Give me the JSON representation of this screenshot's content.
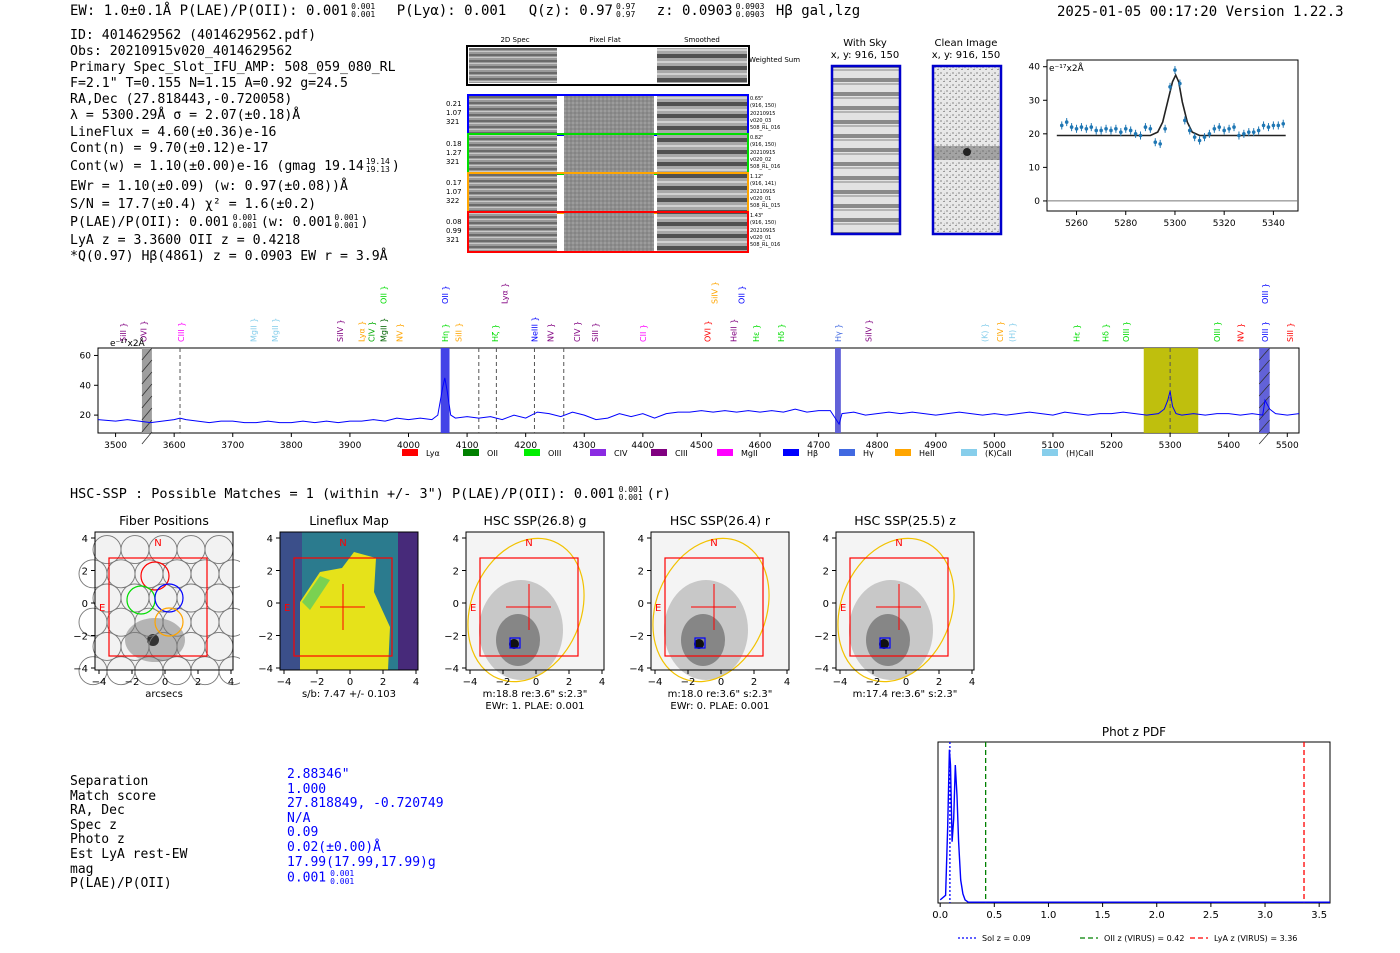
{
  "header": {
    "ew": "EW: 1.0±0.1Å  P(LAE)/P(OII): 0.001",
    "plae_sup": "0.001",
    "plae_sub": "0.001",
    "plya": "P(Lyα): 0.001",
    "qz": "Q(z): 0.97",
    "qz_sup": "0.97",
    "qz_sub": "0.97",
    "z": "z: 0.0903",
    "z_sup": "0.0903",
    "z_sub": "0.0903",
    "hb": "Hβ  gal,lzg",
    "timestamp": "2025-01-05 00:17:20  Version 1.22.3"
  },
  "detection": {
    "lines": [
      "ID: 4014629562 (4014629562.pdf)",
      "Obs: 20210915v020_4014629562",
      "Primary Spec_Slot_IFU_AMP: 508_059_080_RL",
      "F=2.1\"  T=0.155  N=1.15  A=0.92  g=24.5",
      "RA,Dec (27.818443,-0.720058)",
      "λ = 5300.29Å  σ = 2.07(±0.18)Å",
      "LineFlux = 4.60(±0.36)e-16",
      "Cont(n) = 9.70(±0.12)e-17"
    ],
    "contw": "Cont(w) = 1.10(±0.00)e-16 (gmag 19.14",
    "contw_sup": "19.14",
    "contw_sub": "19.13",
    "contw_end": ")",
    "ewr": "EWr = 1.10(±0.09) (w: 0.97(±0.08))Å",
    "sn": "S/N = 17.7(±0.4)  χ² = 1.6(±0.2)",
    "plae_a": "P(LAE)/P(OII): 0.001",
    "plae_a_sup": "0.001",
    "plae_a_sub": "0.001",
    "plae_b": "(w: 0.001",
    "plae_b_sup": "0.001",
    "plae_b_sub": "0.001",
    "plae_b_end": ")",
    "lya_oii": "LyA z = 3.3600  OII z = 0.4218",
    "q_hb": "*Q(0.97) Hβ(4861) z = 0.0903  EW r = 3.9Å"
  },
  "cutouts": {
    "col_headers": [
      "2D Spec",
      "Pixel Flat",
      "Smoothed"
    ],
    "weighted_sum": "Weighted Sum",
    "rows": [
      {
        "left": [
          "0.21",
          "1.07",
          "321"
        ],
        "right": [
          "0.65\"",
          "(916, 150)",
          "20210915",
          "v020_03",
          "508_RL_016"
        ],
        "color": "#0000ff"
      },
      {
        "left": [
          "0.18",
          "1.27",
          "321"
        ],
        "right": [
          "0.82\"",
          "(916, 150)",
          "20210915",
          "v020_02",
          "508_RL_016"
        ],
        "color": "#00dd00"
      },
      {
        "left": [
          "0.17",
          "1.07",
          "322"
        ],
        "right": [
          "1.12\"",
          "(916, 141)",
          "20210915",
          "v020_01",
          "508_RL_015"
        ],
        "color": "#ffa500"
      },
      {
        "left": [
          "0.08",
          "0.99",
          "321"
        ],
        "right": [
          "1.43\"",
          "(916, 150)",
          "20210915",
          "v020_01",
          "508_RL_016"
        ],
        "color": "#ff0000"
      }
    ],
    "with_sky": "With Sky",
    "with_sky_xy": "x, y: 916, 150",
    "clean": "Clean Image",
    "clean_xy": "x, y: 916, 150"
  },
  "zoom_chart": {
    "type": "line",
    "unit_label": "e⁻¹⁷x2Å",
    "xlim": [
      5248,
      5350
    ],
    "ylim": [
      -3,
      42
    ],
    "xticks": [
      5260,
      5280,
      5300,
      5320,
      5340
    ],
    "yticks": [
      0,
      10,
      20,
      30,
      40
    ],
    "fit_x": [
      5252,
      5290,
      5293,
      5295,
      5297,
      5299,
      5300.3,
      5301.5,
      5303,
      5305,
      5307,
      5310,
      5345
    ],
    "fit_y": [
      19.5,
      19.5,
      20.5,
      23.5,
      29.5,
      35.5,
      37.5,
      35.5,
      29.5,
      23.5,
      20.5,
      19.5,
      19.5
    ],
    "points": [
      [
        5254,
        22.5
      ],
      [
        5256,
        23.5
      ],
      [
        5258,
        22
      ],
      [
        5260,
        21.5
      ],
      [
        5262,
        22
      ],
      [
        5264,
        21.5
      ],
      [
        5266,
        22
      ],
      [
        5268,
        21
      ],
      [
        5270,
        21
      ],
      [
        5272,
        21.5
      ],
      [
        5274,
        21
      ],
      [
        5276,
        21.5
      ],
      [
        5278,
        20.5
      ],
      [
        5280,
        21.5
      ],
      [
        5282,
        21
      ],
      [
        5284,
        20
      ],
      [
        5286,
        19.5
      ],
      [
        5288,
        22
      ],
      [
        5290,
        21.5
      ],
      [
        5292,
        17.5
      ],
      [
        5294,
        17
      ],
      [
        5296,
        21.5
      ],
      [
        5298,
        34
      ],
      [
        5300,
        39
      ],
      [
        5302,
        35
      ],
      [
        5304,
        24
      ],
      [
        5306,
        21
      ],
      [
        5308,
        19
      ],
      [
        5310,
        18
      ],
      [
        5312,
        19
      ],
      [
        5314,
        20
      ],
      [
        5316,
        21.5
      ],
      [
        5318,
        22
      ],
      [
        5320,
        21
      ],
      [
        5322,
        21.5
      ],
      [
        5324,
        22
      ],
      [
        5326,
        19.5
      ],
      [
        5328,
        20
      ],
      [
        5330,
        20.5
      ],
      [
        5332,
        20.5
      ],
      [
        5334,
        21
      ],
      [
        5336,
        22.5
      ],
      [
        5338,
        22
      ],
      [
        5340,
        22.5
      ],
      [
        5342,
        22.5
      ],
      [
        5344,
        23
      ]
    ]
  },
  "chart_data": [
    {
      "type": "line",
      "title": "",
      "unit_label": "e⁻¹⁷x2Å",
      "xlim": [
        3470,
        5520
      ],
      "ylim": [
        8,
        65
      ],
      "xticks": [
        3500,
        3600,
        3700,
        3800,
        3900,
        4000,
        4100,
        4200,
        4300,
        4400,
        4500,
        4600,
        4700,
        4800,
        4900,
        5000,
        5100,
        5200,
        5300,
        5400,
        5500
      ],
      "yticks": [
        20,
        40,
        60
      ],
      "x": [
        3470,
        3500,
        3520,
        3540,
        3560,
        3580,
        3600,
        3610,
        3620,
        3640,
        3660,
        3680,
        3700,
        3720,
        3740,
        3760,
        3780,
        3800,
        3820,
        3840,
        3860,
        3880,
        3900,
        3920,
        3940,
        3960,
        3980,
        4000,
        4020,
        4040,
        4050,
        4058,
        4062,
        4066,
        4072,
        4080,
        4100,
        4120,
        4140,
        4160,
        4180,
        4200,
        4220,
        4240,
        4260,
        4280,
        4300,
        4320,
        4340,
        4360,
        4380,
        4400,
        4420,
        4440,
        4460,
        4480,
        4500,
        4520,
        4540,
        4560,
        4580,
        4600,
        4620,
        4640,
        4660,
        4680,
        4700,
        4720,
        4735,
        4740,
        4760,
        4780,
        4800,
        4820,
        4840,
        4860,
        4880,
        4900,
        4920,
        4940,
        4960,
        4980,
        5000,
        5020,
        5040,
        5060,
        5080,
        5100,
        5120,
        5140,
        5160,
        5180,
        5200,
        5220,
        5240,
        5260,
        5280,
        5290,
        5296,
        5300,
        5304,
        5310,
        5320,
        5340,
        5360,
        5380,
        5400,
        5420,
        5440,
        5458,
        5462,
        5470,
        5480,
        5500,
        5520
      ],
      "y": [
        17,
        16,
        17,
        16,
        15,
        16,
        17,
        18,
        17,
        16,
        15,
        16,
        16,
        15,
        15,
        16,
        15,
        15,
        16,
        15,
        16,
        15,
        16,
        16,
        17,
        16,
        18,
        17,
        18,
        17,
        20,
        38,
        45,
        36,
        20,
        18,
        19,
        18,
        19,
        17,
        20,
        18,
        22,
        21,
        19,
        22,
        20,
        17,
        18,
        21,
        19,
        21,
        18,
        21,
        22,
        22,
        23,
        22,
        23,
        22,
        23,
        22,
        23,
        22,
        24,
        22,
        23,
        23,
        14,
        21,
        22,
        20,
        21,
        22,
        21,
        22,
        21,
        20,
        21,
        22,
        21,
        20,
        21,
        20,
        21,
        22,
        21,
        20,
        22,
        21,
        20,
        21,
        21,
        22,
        21,
        20,
        21,
        24,
        30,
        36,
        26,
        21,
        20,
        21,
        20,
        21,
        21,
        20,
        21,
        20,
        30,
        24,
        21,
        20,
        21
      ],
      "bands": [
        {
          "x0": 3545,
          "x1": 3562,
          "color": "#999999",
          "hatch": true
        },
        {
          "x0": 4055,
          "x1": 4070,
          "color": "#3a3ae6",
          "hatch": false
        },
        {
          "x0": 4728,
          "x1": 4738,
          "color": "#5a5ad6",
          "hatch": false
        },
        {
          "x0": 5255,
          "x1": 5348,
          "color": "#bcbc00",
          "hatch": false
        },
        {
          "x0": 5452,
          "x1": 5470,
          "color": "#5a5ad6",
          "hatch": true
        }
      ],
      "dashed_x": [
        3610,
        4120,
        4150,
        4215,
        4265,
        5300
      ],
      "line_labels": [
        {
          "text": "SiII",
          "x": 3513,
          "color": "#800080",
          "row": "low"
        },
        {
          "text": "OVI",
          "x": 3548,
          "color": "#800080",
          "row": "low"
        },
        {
          "text": "CIII",
          "x": 3612,
          "color": "#ff00ff",
          "row": "low"
        },
        {
          "text": "MgII",
          "x": 3735,
          "color": "#87ceeb",
          "row": "low"
        },
        {
          "text": "MgII",
          "x": 3772,
          "color": "#87ceeb",
          "row": "low"
        },
        {
          "text": "SiIV",
          "x": 3883,
          "color": "#800080",
          "row": "low"
        },
        {
          "text": "Lyα",
          "x": 3920,
          "color": "#ffa500",
          "row": "low"
        },
        {
          "text": "CIV",
          "x": 3937,
          "color": "#00aa00",
          "row": "low"
        },
        {
          "text": "MgII",
          "x": 3957,
          "color": "#006400",
          "row": "low"
        },
        {
          "text": "NV",
          "x": 3985,
          "color": "#ffa500",
          "row": "low"
        },
        {
          "text": "Hη",
          "x": 4062,
          "color": "#00dd00",
          "row": "low"
        },
        {
          "text": "SiII",
          "x": 4085,
          "color": "#ffa500",
          "row": "low"
        },
        {
          "text": "Hζ",
          "x": 4148,
          "color": "#00dd00",
          "row": "low"
        },
        {
          "text": "NeIII",
          "x": 4215,
          "color": "#0000ff",
          "row": "low"
        },
        {
          "text": "NV",
          "x": 4242,
          "color": "#800080",
          "row": "low"
        },
        {
          "text": "CIV",
          "x": 4288,
          "color": "#800080",
          "row": "low"
        },
        {
          "text": "SiII",
          "x": 4318,
          "color": "#800080",
          "row": "low"
        },
        {
          "text": "CII",
          "x": 4400,
          "color": "#ff00ff",
          "row": "low"
        },
        {
          "text": "OVI",
          "x": 4510,
          "color": "#ff0000",
          "row": "low"
        },
        {
          "text": "HeII",
          "x": 4555,
          "color": "#800080",
          "row": "low"
        },
        {
          "text": "Hε",
          "x": 4593,
          "color": "#00dd00",
          "row": "low"
        },
        {
          "text": "Hδ",
          "x": 4636,
          "color": "#00dd00",
          "row": "low"
        },
        {
          "text": "Hγ",
          "x": 4733,
          "color": "#4169e1",
          "row": "low"
        },
        {
          "text": "SiIV",
          "x": 4785,
          "color": "#800080",
          "row": "low"
        },
        {
          "text": "(K)",
          "x": 4983,
          "color": "#87ceeb",
          "row": "low"
        },
        {
          "text": "CIV",
          "x": 5010,
          "color": "#ffa500",
          "row": "low"
        },
        {
          "text": "(H)",
          "x": 5030,
          "color": "#87ceeb",
          "row": "low"
        },
        {
          "text": "Hε",
          "x": 5140,
          "color": "#00dd00",
          "row": "low"
        },
        {
          "text": "Hδ",
          "x": 5190,
          "color": "#00dd00",
          "row": "low"
        },
        {
          "text": "OIII",
          "x": 5225,
          "color": "#00dd00",
          "row": "low"
        },
        {
          "text": "OIII",
          "x": 5380,
          "color": "#00dd00",
          "row": "low"
        },
        {
          "text": "NV",
          "x": 5420,
          "color": "#ff0000",
          "row": "low"
        },
        {
          "text": "OIII",
          "x": 5462,
          "color": "#0000ff",
          "row": "low"
        },
        {
          "text": "SiII",
          "x": 5505,
          "color": "#ff0000",
          "row": "low"
        },
        {
          "text": "OII",
          "x": 3957,
          "color": "#00dd00",
          "row": "high"
        },
        {
          "text": "OII",
          "x": 4062,
          "color": "#0000ff",
          "row": "high"
        },
        {
          "text": "Lyα",
          "x": 4164,
          "color": "#800080",
          "row": "high"
        },
        {
          "text": "SiIV",
          "x": 4522,
          "color": "#ffa500",
          "row": "high"
        },
        {
          "text": "OII",
          "x": 4568,
          "color": "#0000ff",
          "row": "high"
        },
        {
          "text": "OIII",
          "x": 5462,
          "color": "#0000ff",
          "row": "high"
        }
      ],
      "legend": [
        {
          "label": "Lyα",
          "color": "#ff0000"
        },
        {
          "label": "OII",
          "color": "#008000"
        },
        {
          "label": "OIII",
          "color": "#00ee00"
        },
        {
          "label": "CIV",
          "color": "#8a2be2"
        },
        {
          "label": "CIII",
          "color": "#800080"
        },
        {
          "label": "MgII",
          "color": "#ff00ff"
        },
        {
          "label": "Hβ",
          "color": "#0000ff"
        },
        {
          "label": "Hγ",
          "color": "#4169e1"
        },
        {
          "label": "HeII",
          "color": "#ffa500"
        },
        {
          "label": "(K)CaII",
          "color": "#87ceeb"
        },
        {
          "label": "(H)CaII",
          "color": "#87ceeb"
        }
      ]
    },
    {
      "type": "line",
      "title": "Phot z PDF",
      "xlim": [
        -0.02,
        3.6
      ],
      "ylim": [
        0,
        1.05
      ],
      "xticks": [
        0.0,
        0.5,
        1.0,
        1.5,
        2.0,
        2.5,
        3.0,
        3.5
      ],
      "xtick_labels": [
        "0.0",
        "0.5",
        "1.0",
        "1.5",
        "2.0",
        "2.5",
        "3.0",
        "3.5"
      ],
      "x": [
        0,
        0.05,
        0.07,
        0.085,
        0.095,
        0.11,
        0.125,
        0.14,
        0.155,
        0.17,
        0.19,
        0.21,
        0.23,
        0.26,
        0.3,
        0.5,
        3.6
      ],
      "y": [
        0.02,
        0.05,
        0.5,
        1.0,
        0.9,
        0.4,
        0.55,
        0.9,
        0.7,
        0.4,
        0.15,
        0.06,
        0.02,
        0.005,
        0.005,
        0.005,
        0.005
      ],
      "vlines": [
        {
          "x": 0.09,
          "color": "#0000ff",
          "style": "dotted",
          "label": "Sol z = 0.09"
        },
        {
          "x": 0.42,
          "color": "#008000",
          "style": "dashed",
          "label": "OII z (VIRUS) = 0.42"
        },
        {
          "x": 3.36,
          "color": "#ff0000",
          "style": "dashed",
          "label": "LyA z (VIRUS) = 3.36"
        }
      ]
    }
  ],
  "hsc": {
    "title": "HSC-SSP : Possible Matches = 1 (within +/- 3\")  P(LAE)/P(OII): 0.001",
    "sup": "0.001",
    "sub": "0.001",
    "tail": "(r)"
  },
  "maps": {
    "ticks": [
      "4",
      "2",
      "0",
      "−2",
      "−4"
    ],
    "xticks": [
      "−4",
      "−2",
      "0",
      "2",
      "4"
    ],
    "N": "N",
    "E": "E",
    "panels": [
      {
        "title": "Fiber Positions",
        "caption1": "arcsecs",
        "caption2": ""
      },
      {
        "title": "Lineflux Map",
        "caption1": "s/b: 7.47 +/- 0.103",
        "caption2": ""
      },
      {
        "title": "HSC SSP(26.8) g",
        "caption1": "m:18.8  re:3.6\"  s:2.3\"",
        "caption2": "EWr: 1. PLAE: 0.001"
      },
      {
        "title": "HSC SSP(26.4) r",
        "caption1": "m:18.0  re:3.6\"  s:2.3\"",
        "caption2": "EWr: 0. PLAE: 0.001"
      },
      {
        "title": "HSC SSP(25.5) z",
        "caption1": "m:17.4  re:3.6\"  s:2.3\"",
        "caption2": ""
      }
    ]
  },
  "match": {
    "labels": [
      "Separation",
      "Match score",
      "RA, Dec",
      "Spec z",
      "Photo z",
      "Est LyA rest-EW",
      "mag",
      "P(LAE)/P(OII)"
    ],
    "values": [
      "2.88346\"",
      "1.000",
      "27.818849, -0.720749",
      "N/A",
      "0.09",
      "0.02(±0.00)Å",
      "17.99(17.99,17.99)g",
      "0.001"
    ],
    "plae_sup": "0.001",
    "plae_sub": "0.001"
  }
}
